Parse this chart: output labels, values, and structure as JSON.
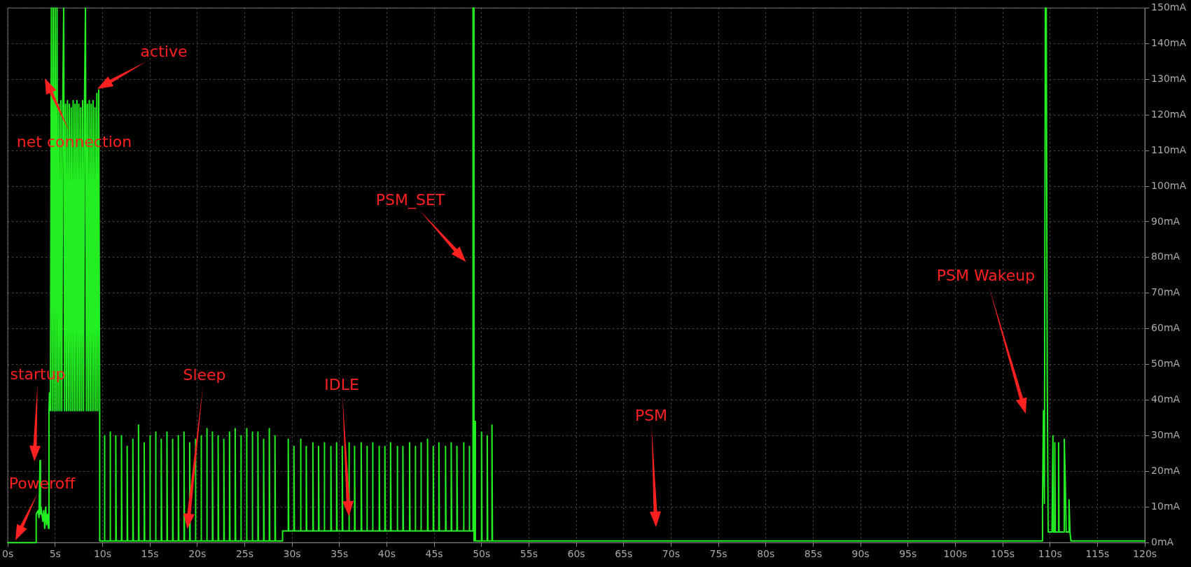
{
  "chart_data": {
    "type": "line",
    "marker": "none",
    "line_style": "solid",
    "grid": true,
    "legend": false,
    "xlim": [
      0,
      120
    ],
    "ylim": [
      0,
      150
    ],
    "xticks": [
      {
        "value": 0,
        "label": "0s"
      },
      {
        "value": 5,
        "label": "5s"
      },
      {
        "value": 10,
        "label": "10s"
      },
      {
        "value": 15,
        "label": "15s"
      },
      {
        "value": 20,
        "label": "20s"
      },
      {
        "value": 25,
        "label": "25s"
      },
      {
        "value": 30,
        "label": "30s"
      },
      {
        "value": 35,
        "label": "35s"
      },
      {
        "value": 40,
        "label": "40s"
      },
      {
        "value": 45,
        "label": "45s"
      },
      {
        "value": 50,
        "label": "50s"
      },
      {
        "value": 55,
        "label": "55s"
      },
      {
        "value": 60,
        "label": "60s"
      },
      {
        "value": 65,
        "label": "65s"
      },
      {
        "value": 70,
        "label": "70s"
      },
      {
        "value": 75,
        "label": "75s"
      },
      {
        "value": 80,
        "label": "80s"
      },
      {
        "value": 85,
        "label": "85s"
      },
      {
        "value": 90,
        "label": "90s"
      },
      {
        "value": 95,
        "label": "95s"
      },
      {
        "value": 100,
        "label": "100s"
      },
      {
        "value": 105,
        "label": "105s"
      },
      {
        "value": 110,
        "label": "110s"
      },
      {
        "value": 115,
        "label": "115s"
      },
      {
        "value": 120,
        "label": "120s"
      }
    ],
    "yticks": [
      {
        "value": 0,
        "label": "0mA"
      },
      {
        "value": 10,
        "label": "10mA"
      },
      {
        "value": 20,
        "label": "20mA"
      },
      {
        "value": 30,
        "label": "30mA"
      },
      {
        "value": 40,
        "label": "40mA"
      },
      {
        "value": 50,
        "label": "50mA"
      },
      {
        "value": 60,
        "label": "60mA"
      },
      {
        "value": 70,
        "label": "70mA"
      },
      {
        "value": 80,
        "label": "80mA"
      },
      {
        "value": 90,
        "label": "90mA"
      },
      {
        "value": 100,
        "label": "100mA"
      },
      {
        "value": 110,
        "label": "110mA"
      },
      {
        "value": 120,
        "label": "120mA"
      },
      {
        "value": 130,
        "label": "130mA"
      },
      {
        "value": 140,
        "label": "140mA"
      },
      {
        "value": 150,
        "label": "150mA"
      }
    ],
    "annotations": [
      "Poweroff",
      "startup",
      "net connection",
      "active",
      "Sleep",
      "IDLE",
      "PSM_SET",
      "PSM",
      "PSM Wakeup"
    ],
    "x": [
      0,
      3,
      3,
      3.2,
      3.3,
      3.4,
      3.45,
      3.5,
      3.7,
      3.8,
      3.9,
      4,
      4.1,
      4.2,
      4.3,
      4.35,
      4.4,
      4.45,
      4.5,
      4.6,
      4.7,
      4.8,
      4.9,
      5.0,
      5.1,
      5.2,
      5.3,
      5.4,
      5.5,
      5.6,
      5.7,
      5.8,
      5.9,
      6.0,
      6.1,
      6.2,
      6.3,
      6.4,
      6.5,
      6.6,
      6.7,
      6.8,
      6.9,
      7.0,
      7.1,
      7.2,
      7.3,
      7.4,
      7.5,
      7.6,
      7.7,
      7.8,
      7.9,
      8.0,
      8.1,
      8.2,
      8.3,
      8.4,
      8.5,
      8.6,
      8.7,
      8.8,
      8.9,
      9.0,
      9.1,
      9.2,
      9.3,
      9.4,
      9.5,
      9.6,
      9.7,
      9.7,
      10.2,
      10.2,
      10.25,
      10.8,
      10.8,
      10.85,
      11.4,
      11.4,
      11.45,
      12.0,
      12.0,
      12.05,
      12.6,
      12.6,
      12.65,
      13.2,
      13.2,
      13.25,
      13.8,
      13.8,
      13.85,
      14.4,
      14.4,
      14.45,
      15.0,
      15.0,
      15.05,
      15.6,
      15.6,
      15.65,
      16.2,
      16.2,
      16.25,
      16.8,
      16.8,
      16.85,
      17.4,
      17.4,
      17.45,
      18.0,
      18.0,
      18.05,
      18.6,
      18.6,
      18.65,
      19.2,
      19.2,
      19.25,
      19.8,
      19.8,
      19.85,
      20.4,
      20.4,
      20.45,
      21.0,
      21.0,
      21.05,
      21.6,
      21.6,
      21.65,
      22.2,
      22.2,
      22.25,
      22.8,
      22.8,
      22.85,
      23.4,
      23.4,
      23.45,
      24.0,
      24.0,
      24.05,
      24.6,
      24.6,
      24.65,
      25.2,
      25.2,
      25.25,
      25.8,
      25.8,
      25.85,
      26.4,
      26.4,
      26.45,
      27.0,
      27.0,
      27.05,
      27.6,
      27.6,
      27.65,
      28.2,
      28.2,
      28.25,
      29.0,
      29.0,
      29.6,
      29.6,
      29.65,
      30.2,
      30.2,
      30.25,
      30.9,
      30.9,
      30.95,
      31.5,
      31.5,
      31.55,
      32.2,
      32.2,
      32.25,
      32.8,
      32.8,
      32.85,
      33.4,
      33.4,
      33.45,
      34.1,
      34.1,
      34.15,
      34.7,
      34.7,
      34.75,
      35.3,
      35.3,
      35.35,
      36.0,
      36.0,
      36.05,
      36.6,
      36.6,
      36.65,
      37.3,
      37.3,
      37.35,
      37.9,
      37.9,
      37.95,
      38.5,
      38.5,
      38.55,
      39.2,
      39.2,
      39.25,
      39.8,
      39.8,
      39.85,
      40.4,
      40.4,
      40.45,
      41.1,
      41.1,
      41.15,
      41.7,
      41.7,
      41.75,
      42.4,
      42.4,
      42.45,
      43.0,
      43.0,
      43.05,
      43.6,
      43.6,
      43.65,
      44.3,
      44.3,
      44.35,
      44.9,
      44.9,
      44.95,
      45.5,
      45.5,
      45.55,
      46.2,
      46.2,
      46.25,
      46.8,
      46.8,
      46.85,
      47.4,
      47.4,
      47.45,
      48.1,
      48.1,
      48.15,
      48.7,
      48.7,
      48.75,
      49.1,
      49.1,
      49.2,
      49.2,
      49.3,
      49.35,
      50.0,
      50.0,
      50.05,
      50.6,
      50.6,
      50.65,
      51.1,
      51.1,
      51.15,
      109.2,
      109.2,
      109.3,
      109.4,
      109.5,
      109.6,
      109.7,
      109.8,
      110.2,
      110.3,
      110.35,
      110.5,
      110.5,
      110.55,
      110.9,
      110.9,
      110.95,
      111.5,
      111.5,
      111.6,
      111.7,
      112.0,
      112.0,
      112.1,
      112.2,
      120
    ],
    "series": [
      {
        "color": "#22ee22",
        "values": [
          0,
          0,
          8,
          9,
          7,
          23,
          8,
          10,
          6,
          9,
          4,
          10,
          5,
          8,
          4,
          37,
          42,
          40,
          37,
          150,
          37,
          150,
          37,
          150,
          37,
          150,
          37,
          123,
          37,
          124,
          37,
          122,
          150,
          37,
          123,
          37,
          124,
          37,
          123,
          37,
          122,
          37,
          124,
          37,
          123,
          37,
          124,
          37,
          123,
          37,
          122,
          37,
          124,
          37,
          125,
          150,
          37,
          123,
          37,
          124,
          37,
          123,
          37,
          124,
          37,
          122,
          37,
          126,
          37,
          127,
          37,
          0.5,
          0.5,
          30,
          0.5,
          0.5,
          31,
          0.5,
          0.5,
          30,
          0.5,
          0.5,
          30,
          0.5,
          0.5,
          27,
          0.5,
          0.5,
          29,
          0.5,
          0.5,
          33,
          0.5,
          0.5,
          28,
          0.5,
          0.5,
          30,
          0.5,
          0.5,
          31,
          0.5,
          0.5,
          29,
          0.5,
          0.5,
          31,
          0.5,
          0.5,
          29,
          0.5,
          0.5,
          30,
          0.5,
          0.5,
          31,
          0.5,
          0.5,
          28,
          0.5,
          0.5,
          29,
          0.5,
          0.5,
          30,
          0.5,
          0.5,
          32,
          0.5,
          0.5,
          31,
          0.5,
          0.5,
          30,
          0.5,
          0.5,
          29,
          0.5,
          0.5,
          31,
          0.5,
          0.5,
          32,
          0.5,
          0.5,
          30,
          0.5,
          0.5,
          32,
          0.5,
          0.5,
          31,
          0.5,
          0.5,
          31,
          0.5,
          0.5,
          29,
          0.5,
          0.5,
          32,
          0.5,
          0.5,
          30,
          0.5,
          0.5,
          3.3,
          3.3,
          29,
          3.3,
          3.3,
          27,
          3.3,
          3.3,
          29,
          3.3,
          3.3,
          27,
          3.3,
          3.3,
          28,
          3.3,
          3.3,
          27,
          3.3,
          3.3,
          28,
          3.3,
          3.3,
          27,
          3.3,
          3.3,
          28,
          3.3,
          3.3,
          27,
          3.3,
          3.3,
          28,
          3.3,
          3.3,
          27,
          3.3,
          3.3,
          28,
          3.3,
          3.3,
          27,
          3.3,
          3.3,
          28,
          3.3,
          3.3,
          27,
          3.3,
          3.3,
          27,
          3.3,
          3.3,
          28,
          3.3,
          3.3,
          27,
          3.3,
          3.3,
          27,
          3.3,
          3.3,
          28,
          3.3,
          3.3,
          27,
          3.3,
          3.3,
          28,
          3.3,
          3.3,
          29,
          3.3,
          3.3,
          27,
          3.3,
          3.3,
          28,
          3.3,
          3.3,
          27,
          3.3,
          3.3,
          28,
          3.3,
          3.3,
          27,
          3.3,
          3.3,
          28,
          3.3,
          3.3,
          27,
          3.3,
          3.3,
          150,
          150,
          0.5,
          34,
          0.5,
          0.5,
          31,
          0.5,
          0.5,
          30,
          0.5,
          0.5,
          33,
          0.5,
          0.5,
          11,
          37,
          11,
          150,
          150,
          46,
          3,
          3,
          30,
          3,
          3,
          28,
          3,
          3,
          28,
          3,
          3,
          29,
          18,
          3,
          3,
          12,
          3,
          0.5,
          0.5
        ]
      }
    ]
  }
}
